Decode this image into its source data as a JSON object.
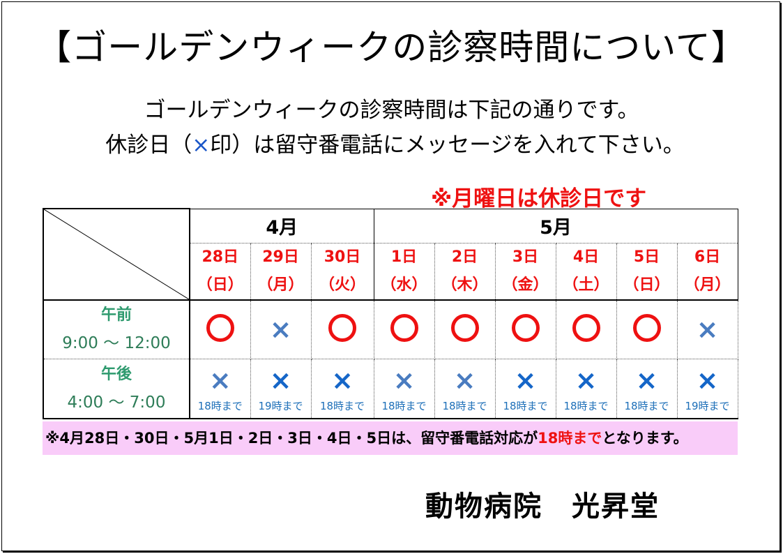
{
  "title": "【ゴールデンウィークの診察時間について】",
  "intro_line1": "ゴールデンウィークの診察時間は下記の通りです。",
  "intro_line2_before": "休診日（",
  "intro_line2_mark": "×",
  "intro_line2_after": "印）は留守番電話にメッセージを入れて下さい。",
  "notice": "※月曜日は休診日です",
  "months": [
    {
      "label": "4月"
    },
    {
      "label": "5月"
    }
  ],
  "days": [
    {
      "date": "28日",
      "weekday": "（日）",
      "am": "open",
      "pm": "closed",
      "pm_tone": "light",
      "am_tone": "",
      "pm_note": "18時まで"
    },
    {
      "date": "29日",
      "weekday": "（月）",
      "am": "closed",
      "am_tone": "light",
      "pm": "closed",
      "pm_tone": "dark",
      "pm_note": "19時まで"
    },
    {
      "date": "30日",
      "weekday": "（火）",
      "am": "open",
      "am_tone": "",
      "pm": "closed",
      "pm_tone": "dark",
      "pm_note": "18時まで"
    },
    {
      "date": "1日",
      "weekday": "（水）",
      "am": "open",
      "am_tone": "",
      "pm": "closed",
      "pm_tone": "light",
      "pm_note": "18時まで"
    },
    {
      "date": "2日",
      "weekday": "（木）",
      "am": "open",
      "am_tone": "",
      "pm": "closed",
      "pm_tone": "light",
      "pm_note": "18時まで"
    },
    {
      "date": "3日",
      "weekday": "（金）",
      "am": "open",
      "am_tone": "",
      "pm": "closed",
      "pm_tone": "dark",
      "pm_note": "18時まで"
    },
    {
      "date": "4日",
      "weekday": "（土）",
      "am": "open",
      "am_tone": "",
      "pm": "closed",
      "pm_tone": "dark",
      "pm_note": "18時まで"
    },
    {
      "date": "5日",
      "weekday": "（日）",
      "am": "open",
      "am_tone": "",
      "pm": "closed",
      "pm_tone": "dark",
      "pm_note": "18時まで"
    },
    {
      "date": "6日",
      "weekday": "（月）",
      "am": "closed",
      "am_tone": "light",
      "pm": "closed",
      "pm_tone": "dark",
      "pm_note": "19時まで"
    }
  ],
  "am_label": "午前",
  "am_hours": "9:00 ～ 12:00",
  "pm_label": "午後",
  "pm_hours": "4:00 ～ 7:00",
  "mark_closed": "×",
  "footer_before": "※4月28日・30日・5月1日・2日・3日・4日・5日は、留守番電話対応が",
  "footer_highlight": "18時まで",
  "footer_after": "となります。",
  "clinic_name": "動物病院　光昇堂",
  "colors": {
    "red": "#ee1111",
    "green": "#2e9a6e",
    "blue": "#1566c8",
    "pink": "#f9ccf9"
  }
}
